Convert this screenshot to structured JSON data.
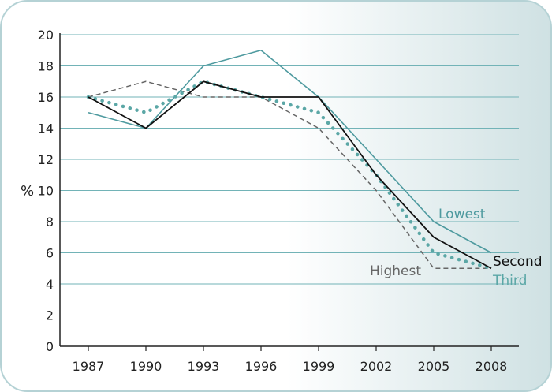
{
  "chart_data": {
    "type": "line",
    "ylabel": "%",
    "xlabel": "",
    "categories": [
      "1987",
      "1990",
      "1993",
      "1996",
      "1999",
      "2002",
      "2005",
      "2008"
    ],
    "ylim": [
      0,
      20
    ],
    "yticks": [
      "0",
      "2",
      "4",
      "6",
      "8",
      "10",
      "12",
      "14",
      "16",
      "18",
      "20"
    ],
    "grid": true,
    "series": [
      {
        "name": "Lowest",
        "values": [
          15,
          14,
          18,
          19,
          16,
          12,
          8,
          6
        ],
        "color": "#4e9a9f",
        "style": "solid"
      },
      {
        "name": "Second",
        "values": [
          16,
          14,
          17,
          16,
          16,
          11,
          7,
          5
        ],
        "color": "#111111",
        "style": "solid"
      },
      {
        "name": "Third",
        "values": [
          16,
          15,
          17,
          16,
          15,
          11,
          6,
          5
        ],
        "color": "#5ba7a6",
        "style": "dotted"
      },
      {
        "name": "Highest",
        "values": [
          16,
          17,
          16,
          16,
          14,
          10,
          5,
          5
        ],
        "color": "#666666",
        "style": "dashed"
      }
    ]
  }
}
